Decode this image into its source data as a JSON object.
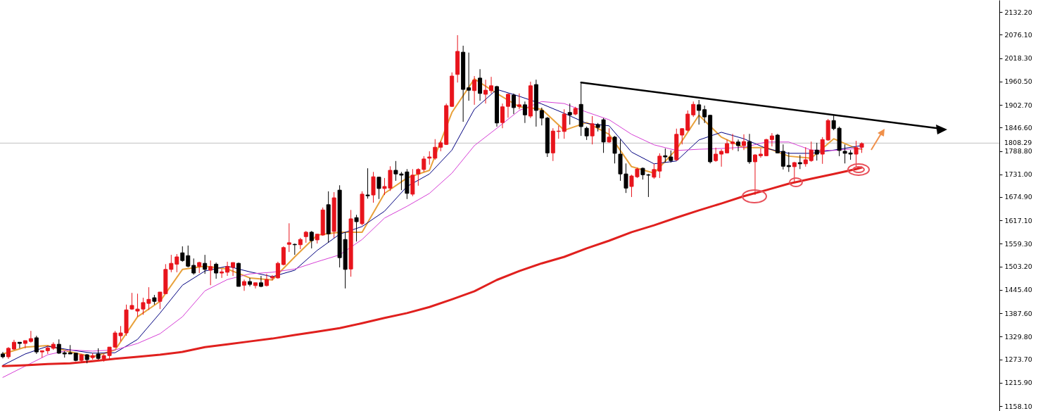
{
  "chart_data": {
    "type": "candlestick",
    "categories": [
      null,
      null,
      null,
      null,
      null,
      null,
      null,
      null,
      null,
      null,
      null,
      null,
      null,
      null,
      null,
      null,
      null,
      null,
      null,
      null,
      null,
      null,
      null,
      null,
      null,
      null,
      null,
      null,
      null,
      null,
      null,
      null,
      null,
      null,
      null,
      null,
      null,
      null,
      null,
      null,
      null,
      null,
      null,
      null,
      null,
      null,
      null,
      null,
      null,
      null,
      null,
      null,
      null,
      null,
      null,
      null,
      null,
      null,
      null,
      null,
      null,
      null,
      null,
      null,
      null,
      null,
      null,
      null,
      null,
      null,
      null,
      null,
      null,
      null,
      null,
      null,
      null,
      null,
      null,
      null,
      null,
      null,
      null,
      null,
      null,
      null,
      null,
      null,
      null,
      null,
      null,
      null,
      null,
      null,
      null,
      null,
      null,
      null,
      null,
      null,
      null,
      null,
      null,
      null,
      null,
      null,
      null,
      null,
      null,
      null,
      null,
      null,
      null,
      null,
      null,
      null,
      null,
      null,
      null,
      null,
      null,
      null,
      null,
      null,
      null,
      null,
      null,
      null,
      null,
      null,
      null,
      null,
      null,
      null,
      null,
      null,
      null,
      null,
      null,
      null,
      null,
      null,
      null,
      null,
      null,
      null,
      null,
      null,
      null,
      null,
      null,
      null,
      null,
      null,
      null,
      null,
      null,
      null,
      null,
      null,
      null,
      null,
      null,
      null,
      null,
      null,
      null,
      null,
      null,
      null,
      null,
      null,
      null,
      null,
      null,
      null,
      null,
      null
    ],
    "colors": [
      "#000000",
      "#e8141c",
      "#e8141c",
      "#000000",
      "#e8141c",
      "#e8141c",
      "#000000",
      "#e8141c",
      "#e8141c",
      "#e8141c",
      "#000000",
      "#000000",
      "#000000",
      "#000000",
      "#e8141c",
      "#000000",
      "#e8141c",
      "#000000",
      "#e8141c",
      "#e8141c",
      "#e8141c",
      "#e8141c",
      "#e8141c",
      "#e8141c",
      "#e8141c",
      "#e8141c",
      "#e8141c",
      "#000000",
      "#e8141c",
      "#e8141c",
      "#e8141c",
      "#e8141c",
      "#000000",
      "#000000",
      "#000000",
      "#e8141c",
      "#000000",
      "#e8141c",
      "#000000",
      "#e8141c",
      "#e8141c",
      "#e8141c",
      "#000000",
      "#e8141c",
      "#000000",
      "#e8141c",
      "#000000",
      "#e8141c",
      "#e8141c",
      "#e8141c",
      "#e8141c",
      "#e8141c",
      "#000000",
      "#e8141c",
      "#e8141c",
      "#000000",
      "#e8141c",
      "#e8141c",
      "#000000",
      "#e8141c",
      "#000000",
      "#000000",
      "#e8141c",
      "#000000",
      "#e8141c",
      "#000000",
      "#e8141c",
      "#000000",
      "#e8141c",
      "#e8141c",
      "#000000",
      "#000000",
      "#000000",
      "#e8141c",
      "#e8141c",
      "#e8141c",
      "#e8141c",
      "#e8141c",
      "#e8141c",
      "#e8141c",
      "#e8141c",
      "#e8141c",
      "#000000",
      "#000000",
      "#e8141c",
      "#000000",
      "#e8141c",
      "#e8141c",
      "#000000",
      "#e8141c",
      "#e8141c",
      "#000000",
      "#e8141c",
      "#000000",
      "#e8141c",
      "#000000",
      "#000000",
      "#000000",
      "#e8141c",
      "#e8141c",
      "#e8141c",
      "#000000",
      "#e8141c",
      "#000000",
      "#000000",
      "#e8141c",
      "#000000",
      "#000000",
      "#e8141c",
      "#000000",
      "#000000",
      "#000000",
      "#e8141c",
      "#e8141c",
      "#000000",
      "#000000",
      "#e8141c",
      "#e8141c",
      "#000000",
      "#000000",
      "#e8141c",
      "#e8141c",
      "#e8141c",
      "#e8141c",
      "#000000",
      "#000000",
      "#000000",
      "#e8141c",
      "#e8141c",
      "#e8141c",
      "#e8141c",
      "#000000",
      "#e8141c",
      "#000000",
      "#e8141c",
      "#e8141c",
      "#e8141c",
      "#e8141c",
      "#000000",
      "#000000",
      "#000000",
      "#e8141c",
      "#000000",
      "#e8141c",
      "#e8141c",
      "#000000",
      "#e8141c",
      "#e8141c",
      "#000000",
      "#000000",
      "#000000",
      "#000000",
      "#e8141c",
      "#e8141c",
      null,
      null,
      null,
      null,
      null,
      null,
      null,
      null,
      null,
      null,
      null,
      null,
      null,
      null,
      null,
      null,
      null,
      null,
      null,
      null,
      null,
      null,
      null,
      null
    ],
    "ohlc": [
      [
        1287,
        1292,
        1276,
        1280
      ],
      [
        1280,
        1304,
        1275,
        1301
      ],
      [
        1299,
        1322,
        1297,
        1316
      ],
      [
        1316,
        1316,
        1301,
        1313
      ],
      [
        1313,
        1320,
        1301,
        1320
      ],
      [
        1318,
        1344,
        1315,
        1325
      ],
      [
        1327,
        1332,
        1287,
        1292
      ],
      [
        1292,
        1295,
        1278,
        1295
      ],
      [
        1295,
        1308,
        1287,
        1302
      ],
      [
        1301,
        1316,
        1297,
        1311
      ],
      [
        1311,
        1323,
        1287,
        1289
      ],
      [
        1290,
        1294,
        1278,
        1287
      ],
      [
        1290,
        1309,
        1287,
        1287
      ],
      [
        1289,
        1289,
        1269,
        1271
      ],
      [
        1271,
        1287,
        1266,
        1285
      ],
      [
        1285,
        1287,
        1264,
        1273
      ],
      [
        1278,
        1289,
        1273,
        1283
      ],
      [
        1287,
        1301,
        1273,
        1276
      ],
      [
        1275,
        1287,
        1268,
        1283
      ],
      [
        1283,
        1304,
        1275,
        1304
      ],
      [
        1304,
        1344,
        1302,
        1339
      ],
      [
        1332,
        1356,
        1318,
        1339
      ],
      [
        1339,
        1409,
        1332,
        1396
      ],
      [
        1398,
        1438,
        1396,
        1407
      ],
      [
        1393,
        1436,
        1379,
        1398
      ],
      [
        1398,
        1426,
        1384,
        1414
      ],
      [
        1412,
        1452,
        1396,
        1422
      ],
      [
        1426,
        1433,
        1409,
        1417
      ],
      [
        1417,
        1440,
        1398,
        1440
      ],
      [
        1436,
        1509,
        1435,
        1496
      ],
      [
        1496,
        1532,
        1489,
        1511
      ],
      [
        1509,
        1534,
        1489,
        1527
      ],
      [
        1537,
        1553,
        1515,
        1518
      ],
      [
        1530,
        1555,
        1501,
        1504
      ],
      [
        1506,
        1523,
        1483,
        1487
      ],
      [
        1503,
        1515,
        1487,
        1513
      ],
      [
        1511,
        1532,
        1485,
        1496
      ],
      [
        1494,
        1518,
        1457,
        1503
      ],
      [
        1509,
        1513,
        1473,
        1487
      ],
      [
        1487,
        1497,
        1475,
        1490
      ],
      [
        1489,
        1515,
        1480,
        1503
      ],
      [
        1501,
        1513,
        1480,
        1513
      ],
      [
        1511,
        1513,
        1454,
        1454
      ],
      [
        1457,
        1471,
        1443,
        1466
      ],
      [
        1466,
        1475,
        1454,
        1459
      ],
      [
        1456,
        1463,
        1449,
        1463
      ],
      [
        1463,
        1480,
        1452,
        1454
      ],
      [
        1456,
        1485,
        1454,
        1471
      ],
      [
        1475,
        1482,
        1469,
        1478
      ],
      [
        1475,
        1515,
        1473,
        1511
      ],
      [
        1508,
        1553,
        1506,
        1550
      ],
      [
        1558,
        1610,
        1539,
        1562
      ],
      [
        1558,
        1560,
        1532,
        1557
      ],
      [
        1557,
        1574,
        1546,
        1570
      ],
      [
        1577,
        1591,
        1562,
        1588
      ],
      [
        1588,
        1591,
        1548,
        1567
      ],
      [
        1569,
        1584,
        1560,
        1583
      ],
      [
        1581,
        1649,
        1579,
        1643
      ],
      [
        1656,
        1689,
        1562,
        1584
      ],
      [
        1590,
        1687,
        1574,
        1673
      ],
      [
        1692,
        1704,
        1501,
        1525
      ],
      [
        1570,
        1588,
        1449,
        1496
      ],
      [
        1497,
        1643,
        1478,
        1621
      ],
      [
        1624,
        1631,
        1565,
        1614
      ],
      [
        1609,
        1689,
        1605,
        1682
      ],
      [
        1680,
        1746,
        1671,
        1678
      ],
      [
        1680,
        1737,
        1661,
        1725
      ],
      [
        1724,
        1725,
        1670,
        1696
      ],
      [
        1696,
        1722,
        1680,
        1701
      ],
      [
        1697,
        1751,
        1690,
        1741
      ],
      [
        1741,
        1764,
        1715,
        1732
      ],
      [
        1732,
        1737,
        1692,
        1729
      ],
      [
        1737,
        1744,
        1670,
        1684
      ],
      [
        1682,
        1744,
        1677,
        1729
      ],
      [
        1732,
        1746,
        1703,
        1743
      ],
      [
        1743,
        1776,
        1737,
        1769
      ],
      [
        1771,
        1788,
        1755,
        1774
      ],
      [
        1771,
        1818,
        1767,
        1798
      ],
      [
        1798,
        1814,
        1788,
        1809
      ],
      [
        1805,
        1906,
        1804,
        1901
      ],
      [
        1899,
        1983,
        1898,
        1974
      ],
      [
        1978,
        2075,
        1958,
        2035
      ],
      [
        2033,
        2049,
        1861,
        1941
      ],
      [
        1945,
        2032,
        1913,
        1939
      ],
      [
        1938,
        1974,
        1903,
        1964
      ],
      [
        1969,
        1991,
        1913,
        1931
      ],
      [
        1929,
        1965,
        1906,
        1939
      ],
      [
        1938,
        1972,
        1931,
        1950
      ],
      [
        1948,
        1950,
        1849,
        1858
      ],
      [
        1859,
        1906,
        1845,
        1898
      ],
      [
        1899,
        1931,
        1871,
        1929
      ],
      [
        1927,
        1931,
        1880,
        1896
      ],
      [
        1899,
        1931,
        1892,
        1903
      ],
      [
        1903,
        1911,
        1858,
        1878
      ],
      [
        1875,
        1960,
        1870,
        1950
      ],
      [
        1953,
        1965,
        1849,
        1889
      ],
      [
        1889,
        1896,
        1852,
        1870
      ],
      [
        1870,
        1873,
        1774,
        1784
      ],
      [
        1784,
        1845,
        1764,
        1838
      ],
      [
        1837,
        1851,
        1819,
        1838
      ],
      [
        1837,
        1892,
        1819,
        1880
      ],
      [
        1884,
        1906,
        1854,
        1878
      ],
      [
        1880,
        1898,
        1877,
        1894
      ],
      [
        1904,
        1958,
        1826,
        1849
      ],
      [
        1845,
        1849,
        1816,
        1826
      ],
      [
        1826,
        1875,
        1805,
        1856
      ],
      [
        1854,
        1858,
        1837,
        1847
      ],
      [
        1866,
        1870,
        1784,
        1811
      ],
      [
        1811,
        1845,
        1809,
        1823
      ],
      [
        1823,
        1826,
        1758,
        1783
      ],
      [
        1781,
        1817,
        1715,
        1732
      ],
      [
        1732,
        1758,
        1685,
        1697
      ],
      [
        1701,
        1730,
        1675,
        1727
      ],
      [
        1725,
        1748,
        1722,
        1744
      ],
      [
        1746,
        1748,
        1718,
        1730
      ],
      [
        1730,
        1732,
        1675,
        1729
      ],
      [
        1724,
        1757,
        1720,
        1743
      ],
      [
        1739,
        1783,
        1722,
        1776
      ],
      [
        1777,
        1795,
        1760,
        1774
      ],
      [
        1774,
        1790,
        1760,
        1765
      ],
      [
        1767,
        1844,
        1765,
        1830
      ],
      [
        1828,
        1845,
        1805,
        1844
      ],
      [
        1840,
        1889,
        1837,
        1880
      ],
      [
        1878,
        1911,
        1873,
        1904
      ],
      [
        1903,
        1915,
        1854,
        1889
      ],
      [
        1891,
        1901,
        1858,
        1873
      ],
      [
        1877,
        1878,
        1758,
        1762
      ],
      [
        1765,
        1797,
        1762,
        1781
      ],
      [
        1781,
        1793,
        1750,
        1788
      ],
      [
        1784,
        1817,
        1783,
        1807
      ],
      [
        1807,
        1831,
        1791,
        1811
      ],
      [
        1811,
        1817,
        1788,
        1802
      ],
      [
        1802,
        1830,
        1791,
        1812
      ],
      [
        1812,
        1831,
        1757,
        1762
      ],
      [
        1762,
        1781,
        1680,
        1779
      ],
      [
        1777,
        1795,
        1772,
        1781
      ],
      [
        1777,
        1819,
        1776,
        1817
      ],
      [
        1817,
        1833,
        1800,
        1826
      ],
      [
        1828,
        1831,
        1783,
        1784
      ],
      [
        1788,
        1805,
        1743,
        1751
      ],
      [
        1753,
        1786,
        1737,
        1750
      ],
      [
        1750,
        1762,
        1713,
        1760
      ],
      [
        1760,
        1779,
        1744,
        1757
      ],
      [
        1757,
        1798,
        1750,
        1767
      ],
      [
        1765,
        1812,
        1762,
        1791
      ],
      [
        1791,
        1809,
        1765,
        1781
      ],
      [
        1781,
        1823,
        1757,
        1817
      ],
      [
        1816,
        1868,
        1814,
        1864
      ],
      [
        1864,
        1878,
        1840,
        1844
      ],
      [
        1845,
        1849,
        1776,
        1790
      ],
      [
        1788,
        1805,
        1758,
        1783
      ],
      [
        1784,
        1791,
        1767,
        1781
      ],
      [
        1781,
        1814,
        1750,
        1797
      ],
      [
        1798,
        1810,
        1784,
        1807
      ],
      null,
      null,
      null,
      null,
      null,
      null,
      null,
      null,
      null,
      null,
      null,
      null,
      null,
      null,
      null,
      null,
      null,
      null,
      null,
      null,
      null,
      null,
      null,
      null
    ],
    "series": [
      {
        "type": "line",
        "color": "#e8a13a",
        "values": [
          1287,
          null,
          null,
          null,
          1304,
          null,
          null,
          null,
          1308,
          null,
          null,
          null,
          1292,
          null,
          null,
          null,
          1280,
          null,
          null,
          null,
          1297,
          null,
          null,
          null,
          1379,
          null,
          null,
          null,
          1417,
          null,
          null,
          null,
          1496,
          null,
          null,
          null,
          1504,
          null,
          null,
          null,
          1497,
          null,
          null,
          null,
          1475,
          null,
          null,
          null,
          1470,
          null,
          null,
          null,
          1527,
          null,
          null,
          null,
          1581,
          null,
          null,
          null,
          1588,
          null,
          null,
          null,
          1588,
          null,
          null,
          null,
          1684,
          null,
          null,
          null,
          1722,
          null,
          null,
          null,
          1741,
          null,
          null,
          null,
          1884,
          null,
          null,
          null,
          1967,
          null,
          null,
          null,
          1931,
          null,
          null,
          null,
          1898,
          null,
          null,
          null,
          1892,
          null,
          null,
          null,
          1840,
          null,
          null,
          null,
          1859,
          null,
          null,
          null,
          1830,
          null,
          null,
          null,
          1750,
          null,
          null,
          null,
          1734,
          null,
          null,
          null,
          1793,
          null,
          null,
          null,
          1877,
          null,
          null,
          null,
          1823,
          null,
          null,
          null,
          1797,
          null,
          null,
          null,
          1797,
          null,
          null,
          null,
          1776,
          null,
          null,
          null,
          1771,
          null,
          null,
          null,
          1819,
          null,
          null,
          null,
          1795,
          1793,
          null,
          null,
          null,
          null,
          null,
          null,
          null,
          null,
          null,
          null,
          null,
          null,
          null,
          null,
          null,
          null,
          null,
          null,
          null,
          null,
          null,
          null,
          null,
          null
        ]
      },
      {
        "type": "line",
        "color": "#000080",
        "values": [
          1259,
          null,
          null,
          null,
          1287,
          null,
          null,
          null,
          1306,
          null,
          null,
          null,
          1297,
          null,
          null,
          null,
          1289,
          null,
          null,
          null,
          1290,
          null,
          null,
          null,
          1323,
          null,
          null,
          null,
          1388,
          null,
          null,
          null,
          1457,
          null,
          null,
          null,
          1492,
          null,
          null,
          null,
          1504,
          null,
          null,
          null,
          1490,
          null,
          null,
          null,
          1478,
          null,
          null,
          null,
          1494,
          null,
          null,
          null,
          1543,
          null,
          null,
          null,
          1583,
          null,
          null,
          null,
          1602,
          null,
          null,
          null,
          1640,
          null,
          null,
          null,
          1701,
          null,
          null,
          null,
          1732,
          null,
          null,
          null,
          1791,
          null,
          null,
          null,
          1892,
          null,
          null,
          null,
          1941,
          null,
          null,
          null,
          1924,
          null,
          null,
          null,
          1905,
          null,
          null,
          null,
          1882,
          null,
          null,
          null,
          1857,
          null,
          null,
          null,
          1851,
          null,
          null,
          null,
          1786,
          null,
          null,
          null,
          1757,
          null,
          null,
          null,
          1764,
          null,
          null,
          null,
          1816,
          null,
          null,
          null,
          1835,
          null,
          null,
          null,
          1819,
          null,
          null,
          null,
          1795,
          null,
          null,
          null,
          1783,
          null,
          null,
          null,
          1783,
          null,
          null,
          null,
          1791,
          null,
          null,
          null,
          1800,
          1802,
          null,
          null,
          null,
          null,
          null,
          null,
          null,
          null,
          null,
          null,
          null,
          null,
          null,
          null,
          null,
          null,
          null,
          null,
          null,
          null,
          null,
          null,
          null,
          null
        ]
      },
      {
        "type": "line",
        "color": "#d63fd6",
        "values": [
          1229,
          null,
          null,
          null,
          1257,
          null,
          null,
          null,
          1285,
          null,
          null,
          null,
          1297,
          null,
          null,
          null,
          1294,
          null,
          null,
          null,
          1297,
          null,
          null,
          null,
          1313,
          null,
          null,
          null,
          1337,
          null,
          null,
          null,
          1379,
          null,
          null,
          null,
          1443,
          null,
          null,
          null,
          1471,
          null,
          null,
          null,
          1485,
          null,
          null,
          null,
          1489,
          null,
          null,
          null,
          1497,
          null,
          null,
          null,
          1515,
          null,
          null,
          null,
          1532,
          null,
          null,
          null,
          1570,
          null,
          null,
          null,
          1623,
          null,
          null,
          null,
          1652,
          null,
          null,
          null,
          1684,
          null,
          null,
          null,
          1734,
          null,
          null,
          null,
          1802,
          null,
          null,
          null,
          1845,
          null,
          null,
          null,
          1889,
          null,
          null,
          null,
          1911,
          null,
          null,
          null,
          1906,
          null,
          null,
          null,
          1885,
          null,
          null,
          null,
          1866,
          null,
          null,
          null,
          1830,
          null,
          null,
          null,
          1804,
          null,
          null,
          null,
          1790,
          null,
          null,
          null,
          1793,
          null,
          null,
          null,
          1795,
          null,
          null,
          null,
          1798,
          null,
          null,
          null,
          1811,
          null,
          null,
          null,
          1811,
          null,
          null,
          null,
          1791,
          null,
          null,
          null,
          1790,
          null,
          null,
          null,
          1795,
          1795,
          null,
          null,
          null,
          null,
          null,
          null,
          null,
          null,
          null,
          null,
          null,
          null,
          null,
          null,
          null,
          null,
          null,
          null,
          null,
          null,
          null,
          null,
          null,
          null
        ]
      },
      {
        "type": "line",
        "color": "#e0201e",
        "values": [
          1257,
          null,
          null,
          null,
          1259,
          null,
          null,
          null,
          1262,
          null,
          null,
          null,
          1264,
          null,
          null,
          null,
          1269,
          null,
          null,
          null,
          1275,
          null,
          null,
          null,
          1280,
          null,
          null,
          null,
          1285,
          null,
          null,
          null,
          1292,
          null,
          null,
          null,
          1304,
          null,
          null,
          null,
          1311,
          null,
          null,
          null,
          1318,
          null,
          null,
          null,
          1325,
          null,
          null,
          null,
          1334,
          null,
          null,
          null,
          1342,
          null,
          null,
          null,
          1351,
          null,
          null,
          null,
          1363,
          null,
          null,
          null,
          1376,
          null,
          null,
          null,
          1388,
          null,
          null,
          null,
          1403,
          null,
          null,
          null,
          1422,
          null,
          null,
          null,
          1442,
          null,
          null,
          null,
          1470,
          null,
          null,
          null,
          1492,
          null,
          null,
          null,
          1511,
          null,
          null,
          null,
          1527,
          null,
          null,
          null,
          1548,
          null,
          null,
          null,
          1567,
          null,
          null,
          null,
          1588,
          null,
          null,
          null,
          1605,
          null,
          null,
          null,
          1624,
          null,
          null,
          null,
          1642,
          null,
          null,
          null,
          1659,
          null,
          null,
          null,
          1677,
          null,
          null,
          null,
          1692,
          null,
          null,
          null,
          1708,
          null,
          null,
          null,
          1720,
          null,
          null,
          null,
          1732,
          null,
          null,
          null,
          1744,
          1748,
          null,
          null,
          null,
          null,
          null,
          null,
          null,
          null,
          null,
          null,
          null,
          null,
          null,
          null,
          null,
          null,
          null,
          null,
          null,
          null,
          null,
          null,
          null,
          null
        ]
      },
      {
        "type": "line",
        "color": "#000000",
        "values": [
          null,
          null,
          null,
          null,
          null,
          null,
          null,
          null,
          null,
          null,
          null,
          null,
          null,
          null,
          null,
          null,
          null,
          null,
          null,
          null,
          null,
          null,
          null,
          null,
          null,
          null,
          null,
          null,
          null,
          null,
          null,
          null,
          null,
          null,
          null,
          null,
          null,
          null,
          null,
          null,
          null,
          null,
          null,
          null,
          null,
          null,
          null,
          null,
          null,
          null,
          null,
          null,
          null,
          null,
          null,
          null,
          null,
          null,
          null,
          null,
          null,
          null,
          null,
          null,
          null,
          null,
          null,
          null,
          null,
          null,
          null,
          null,
          null,
          null,
          null,
          null,
          null,
          null,
          null,
          null,
          null,
          null,
          null,
          null,
          null,
          null,
          null,
          null,
          null,
          null,
          null,
          null,
          null,
          null,
          null,
          null,
          null,
          null,
          null,
          null,
          null,
          null,
          null,
          1958,
          null,
          null,
          null,
          null,
          null,
          null,
          null,
          null,
          null,
          null,
          null,
          null,
          null,
          null,
          null,
          null,
          null,
          null,
          null,
          null,
          null,
          null,
          null,
          null,
          null,
          null,
          null,
          null,
          null,
          null,
          null,
          null,
          null,
          null,
          null,
          null,
          null,
          null,
          null,
          null,
          null,
          null,
          null,
          null,
          null,
          null,
          null,
          null,
          null,
          null,
          null,
          null,
          null,
          null,
          null,
          null,
          null,
          null,
          null,
          null,
          null,
          null,
          null,
          1844,
          null,
          null,
          null,
          null,
          null,
          null,
          null,
          null,
          null,
          null
        ]
      }
    ],
    "ylim": [
      1146,
      2162
    ],
    "yticks": [
      {
        "value": 2132.2,
        "label": "2132.20"
      },
      {
        "value": 2076.1,
        "label": "2076.10"
      },
      {
        "value": 2018.3,
        "label": "2018.30"
      },
      {
        "value": 1960.5,
        "label": "1960.50"
      },
      {
        "value": 1902.7,
        "label": "1902.70"
      },
      {
        "value": 1846.6,
        "label": "1846.60"
      },
      {
        "value": 1788.8,
        "label": "1788.80"
      },
      {
        "value": 1731,
        "label": "1731.00"
      },
      {
        "value": 1674.9,
        "label": "1674.90"
      },
      {
        "value": 1617.1,
        "label": "1617.10"
      },
      {
        "value": 1559.3,
        "label": "1559.30"
      },
      {
        "value": 1503.2,
        "label": "1503.20"
      },
      {
        "value": 1445.4,
        "label": "1445.40"
      },
      {
        "value": 1387.6,
        "label": "1387.60"
      },
      {
        "value": 1329.8,
        "label": "1329.80"
      },
      {
        "value": 1273.7,
        "label": "1273.70"
      },
      {
        "value": 1215.9,
        "label": "1215.90"
      },
      {
        "value": 1158.1,
        "label": "1158.10"
      }
    ],
    "ref_lines": [
      {
        "axis": "y",
        "value": 1808.29,
        "label": "1808.29",
        "color": "#c0c0c0"
      }
    ],
    "tick_labels": "y"
  }
}
